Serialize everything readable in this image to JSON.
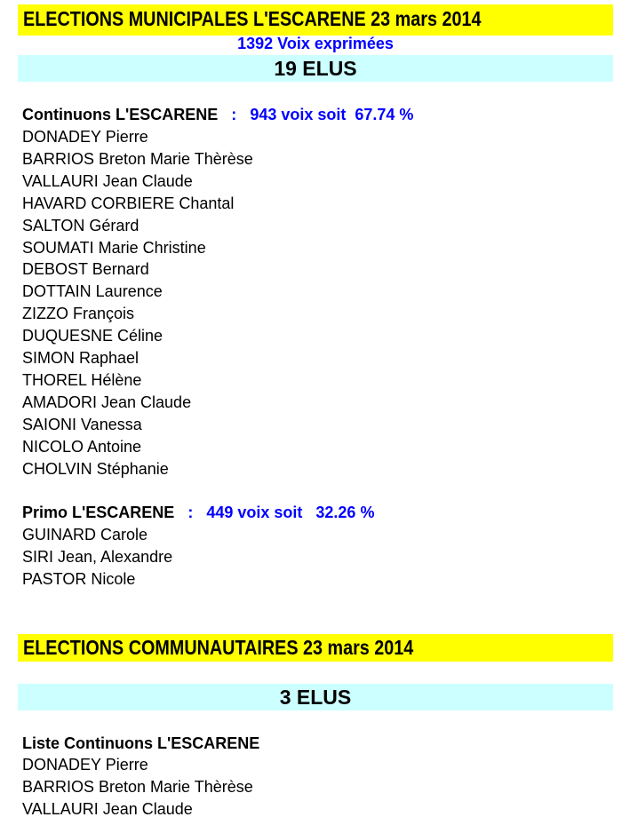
{
  "municipales": {
    "title": "ELECTIONS MUNICIPALES L'ESCARENE 23 mars 2014",
    "votes_expressed": "1392 Voix exprimées",
    "elected_count": "19 ELUS",
    "lists": [
      {
        "name": "Continuons L'ESCARENE",
        "separator": ":",
        "result": "943 voix soit  67.74 %",
        "members": [
          "DONADEY Pierre",
          "BARRIOS Breton Marie Thèrèse",
          "VALLAURI Jean Claude",
          "HAVARD CORBIERE Chantal",
          "SALTON Gérard",
          "SOUMATI Marie Christine",
          "DEBOST Bernard",
          "DOTTAIN Laurence",
          "ZIZZO François",
          "DUQUESNE Céline",
          "SIMON Raphael",
          "THOREL Hélène",
          "AMADORI Jean Claude",
          "SAIONI Vanessa",
          "NICOLO Antoine",
          "CHOLVIN Stéphanie"
        ]
      },
      {
        "name": "Primo L'ESCARENE",
        "separator": ":",
        "result": "449 voix soit   32.26 %",
        "members": [
          "GUINARD Carole",
          "SIRI Jean, Alexandre",
          "PASTOR Nicole"
        ]
      }
    ]
  },
  "communautaires": {
    "title": "ELECTIONS COMMUNAUTAIRES 23 mars 2014",
    "elected_count": "3 ELUS",
    "list_name": "Liste Continuons L'ESCARENE",
    "members": [
      "DONADEY Pierre",
      "BARRIOS Breton Marie Thèrèse",
      "VALLAURI Jean Claude"
    ]
  },
  "colors": {
    "title_bg": "#ffff00",
    "elus_bg": "#ccffff",
    "highlight": "#0000ff"
  }
}
